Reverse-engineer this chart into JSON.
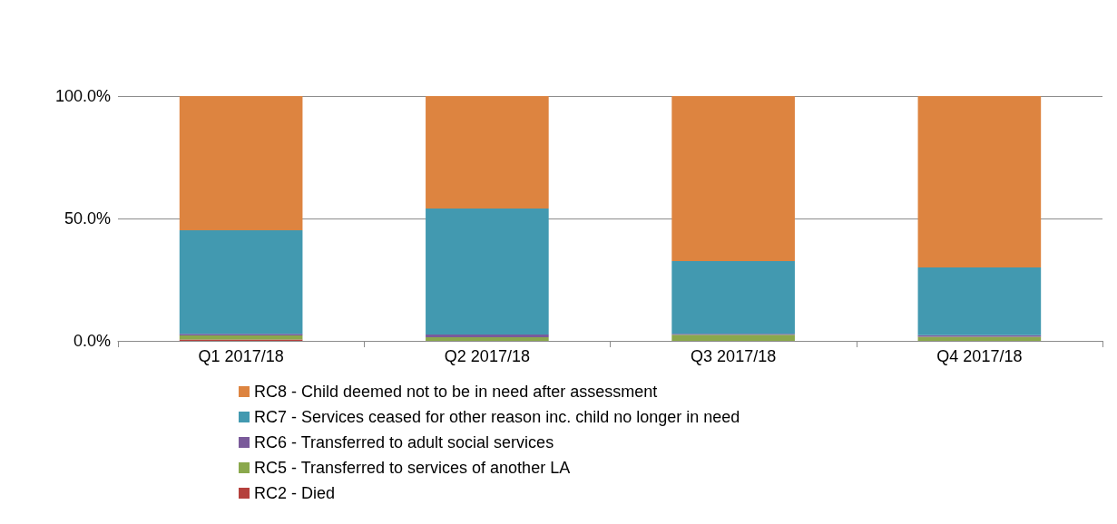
{
  "chart_data": {
    "type": "bar",
    "stacked": true,
    "categories": [
      "Q1 2017/18",
      "Q2 2017/18",
      "Q3 2017/18",
      "Q4 2017/18"
    ],
    "series": [
      {
        "name": "RC2 - Died",
        "color": "#b5403c",
        "values": [
          0.6,
          0,
          0,
          0
        ]
      },
      {
        "name": "RC5 - Transferred to services of another LA",
        "color": "#8aa84c",
        "values": [
          1.6,
          1.5,
          2.5,
          1.7
        ]
      },
      {
        "name": "RC6 - Transferred to adult social services",
        "color": "#7a5a9a",
        "values": [
          0.7,
          1.1,
          0.4,
          0.6
        ]
      },
      {
        "name": "RC7 - Services ceased for other reason inc. child no longer in need",
        "color": "#4299b0",
        "values": [
          42.3,
          51.5,
          29.7,
          27.7
        ]
      },
      {
        "name": "RC8 - Child deemed not to be in need after assessment",
        "color": "#dd8440",
        "values": [
          54.8,
          45.9,
          67.4,
          70.0
        ]
      }
    ],
    "ylim": [
      0,
      100
    ],
    "yticks": [
      {
        "value": 0,
        "label": "0.0%"
      },
      {
        "value": 50,
        "label": "50.0%"
      },
      {
        "value": 100,
        "label": "100.0%"
      }
    ],
    "grid": "y",
    "legend": "bottom"
  }
}
